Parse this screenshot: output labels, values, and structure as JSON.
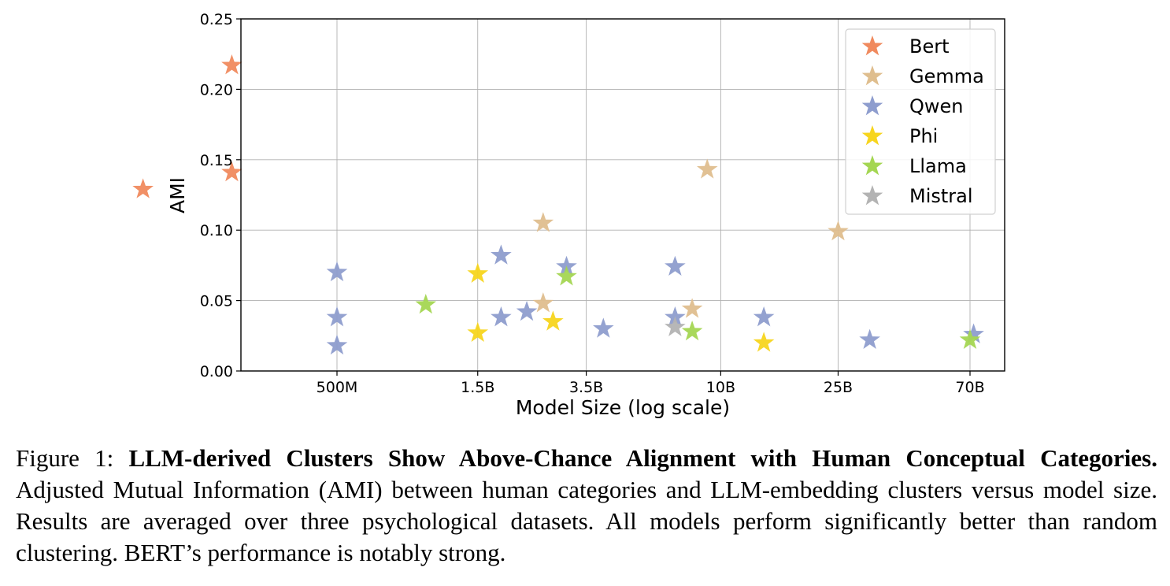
{
  "chart_data": {
    "type": "scatter",
    "marker": "star",
    "xlabel": "Model Size (log scale)",
    "ylabel": "AMI",
    "x_scale": "log",
    "x_ticks": [
      "500M",
      "1.5B",
      "3.5B",
      "10B",
      "25B",
      "70B"
    ],
    "y_ticks": [
      "0.00",
      "0.05",
      "0.10",
      "0.15",
      "0.20",
      "0.25"
    ],
    "ylim": [
      0,
      0.25
    ],
    "grid": true,
    "legend_position": "top-right",
    "series": [
      {
        "name": "Bert",
        "color": "#f08a5e",
        "points": [
          {
            "x": "220M",
            "y": 0.217
          },
          {
            "x": "220M",
            "y": 0.141
          },
          {
            "x": "110M",
            "y": 0.129
          }
        ]
      },
      {
        "name": "Gemma",
        "color": "#dfbe8e",
        "points": [
          {
            "x": "2.5B",
            "y": 0.105
          },
          {
            "x": "2.5B",
            "y": 0.048
          },
          {
            "x": "8B",
            "y": 0.044
          },
          {
            "x": "9B",
            "y": 0.143
          },
          {
            "x": "25B",
            "y": 0.099
          }
        ]
      },
      {
        "name": "Qwen",
        "color": "#8e9dce",
        "points": [
          {
            "x": "500M",
            "y": 0.07
          },
          {
            "x": "500M",
            "y": 0.038
          },
          {
            "x": "500M",
            "y": 0.018
          },
          {
            "x": "1.8B",
            "y": 0.082
          },
          {
            "x": "1.8B",
            "y": 0.038
          },
          {
            "x": "2.2B",
            "y": 0.042
          },
          {
            "x": "3B",
            "y": 0.074
          },
          {
            "x": "4B",
            "y": 0.03
          },
          {
            "x": "7B",
            "y": 0.074
          },
          {
            "x": "7B",
            "y": 0.038
          },
          {
            "x": "14B",
            "y": 0.038
          },
          {
            "x": "32B",
            "y": 0.022
          },
          {
            "x": "72B",
            "y": 0.026
          }
        ]
      },
      {
        "name": "Phi",
        "color": "#f7d51e",
        "points": [
          {
            "x": "1.5B",
            "y": 0.069
          },
          {
            "x": "1.5B",
            "y": 0.027
          },
          {
            "x": "2.7B",
            "y": 0.035
          },
          {
            "x": "14B",
            "y": 0.02
          }
        ]
      },
      {
        "name": "Llama",
        "color": "#a4d652",
        "points": [
          {
            "x": "1B",
            "y": 0.047
          },
          {
            "x": "3B",
            "y": 0.067
          },
          {
            "x": "8B",
            "y": 0.028
          },
          {
            "x": "70B",
            "y": 0.022
          }
        ]
      },
      {
        "name": "Mistral",
        "color": "#b3b3b3",
        "points": [
          {
            "x": "7B",
            "y": 0.031
          }
        ]
      }
    ]
  },
  "caption": {
    "prefix": "Figure 1: ",
    "bold": "LLM-derived Clusters Show Above-Chance Alignment with Human Conceptual Categories.",
    "text": " Adjusted Mutual Information (AMI) between human categories and LLM-embedding clusters versus model size. Results are averaged over three psychological datasets. All models perform significantly better than random clustering. BERT’s performance is notably strong."
  }
}
